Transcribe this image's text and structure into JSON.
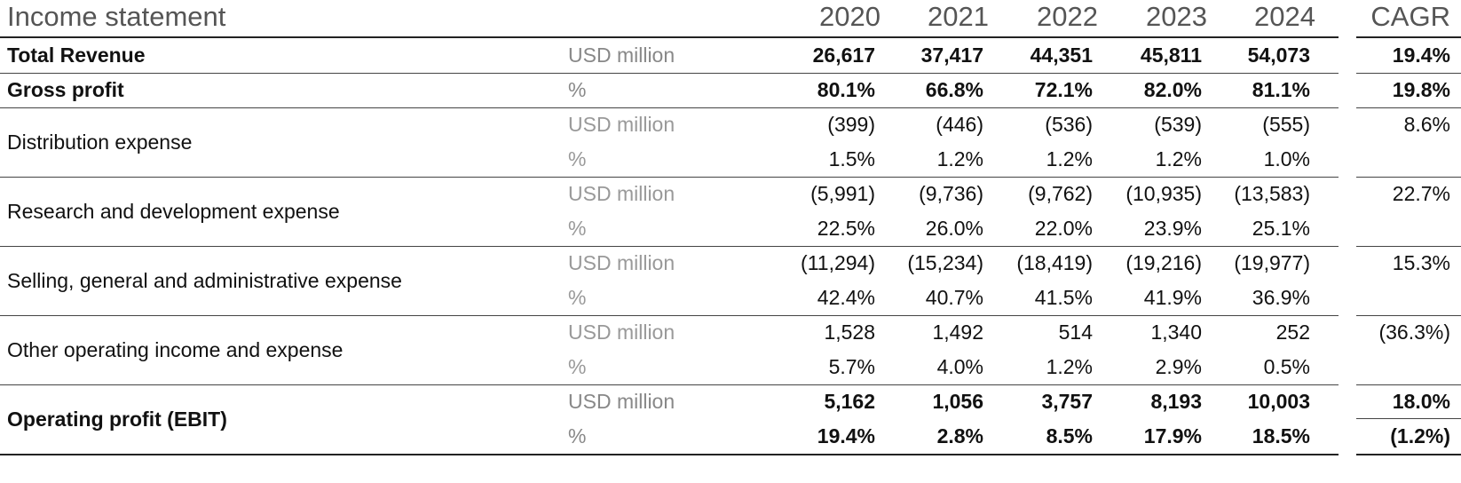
{
  "header": {
    "title": "Income statement",
    "years": [
      "2020",
      "2021",
      "2022",
      "2023",
      "2024"
    ],
    "cagr_label": "CAGR"
  },
  "rows": [
    {
      "label": "Total Revenue",
      "bold": true,
      "lines": [
        {
          "unit": "USD million",
          "values": [
            "26,617",
            "37,417",
            "44,351",
            "45,811",
            "54,073"
          ],
          "cagr": "19.4%"
        }
      ]
    },
    {
      "label": "Gross profit",
      "bold": true,
      "lines": [
        {
          "unit": "%",
          "values": [
            "80.1%",
            "66.8%",
            "72.1%",
            "82.0%",
            "81.1%"
          ],
          "cagr": "19.8%"
        }
      ]
    },
    {
      "label": "Distribution expense",
      "bold": false,
      "lines": [
        {
          "unit": "USD million",
          "values": [
            "(399)",
            "(446)",
            "(536)",
            "(539)",
            "(555)"
          ],
          "cagr": "8.6%"
        },
        {
          "unit": "%",
          "values": [
            "1.5%",
            "1.2%",
            "1.2%",
            "1.2%",
            "1.0%"
          ],
          "cagr": ""
        }
      ]
    },
    {
      "label": "Research and development expense",
      "bold": false,
      "lines": [
        {
          "unit": "USD million",
          "values": [
            "(5,991)",
            "(9,736)",
            "(9,762)",
            "(10,935)",
            "(13,583)"
          ],
          "cagr": "22.7%"
        },
        {
          "unit": "%",
          "values": [
            "22.5%",
            "26.0%",
            "22.0%",
            "23.9%",
            "25.1%"
          ],
          "cagr": ""
        }
      ]
    },
    {
      "label": "Selling, general and administrative expense",
      "bold": false,
      "lines": [
        {
          "unit": "USD million",
          "values": [
            "(11,294)",
            "(15,234)",
            "(18,419)",
            "(19,216)",
            "(19,977)"
          ],
          "cagr": "15.3%"
        },
        {
          "unit": "%",
          "values": [
            "42.4%",
            "40.7%",
            "41.5%",
            "41.9%",
            "36.9%"
          ],
          "cagr": ""
        }
      ]
    },
    {
      "label": "Other operating income and expense",
      "bold": false,
      "lines": [
        {
          "unit": "USD million",
          "values": [
            "1,528",
            "1,492",
            "514",
            "1,340",
            "252"
          ],
          "cagr": "(36.3%)"
        },
        {
          "unit": "%",
          "values": [
            "5.7%",
            "4.0%",
            "1.2%",
            "2.9%",
            "0.5%"
          ],
          "cagr": ""
        }
      ]
    },
    {
      "label": "Operating profit (EBIT)",
      "bold": true,
      "lines": [
        {
          "unit": "USD million",
          "values": [
            "5,162",
            "1,056",
            "3,757",
            "8,193",
            "10,003"
          ],
          "cagr": "18.0%"
        },
        {
          "unit": "%",
          "values": [
            "19.4%",
            "2.8%",
            "8.5%",
            "17.9%",
            "18.5%"
          ],
          "cagr": "(1.2%)"
        }
      ]
    }
  ]
}
